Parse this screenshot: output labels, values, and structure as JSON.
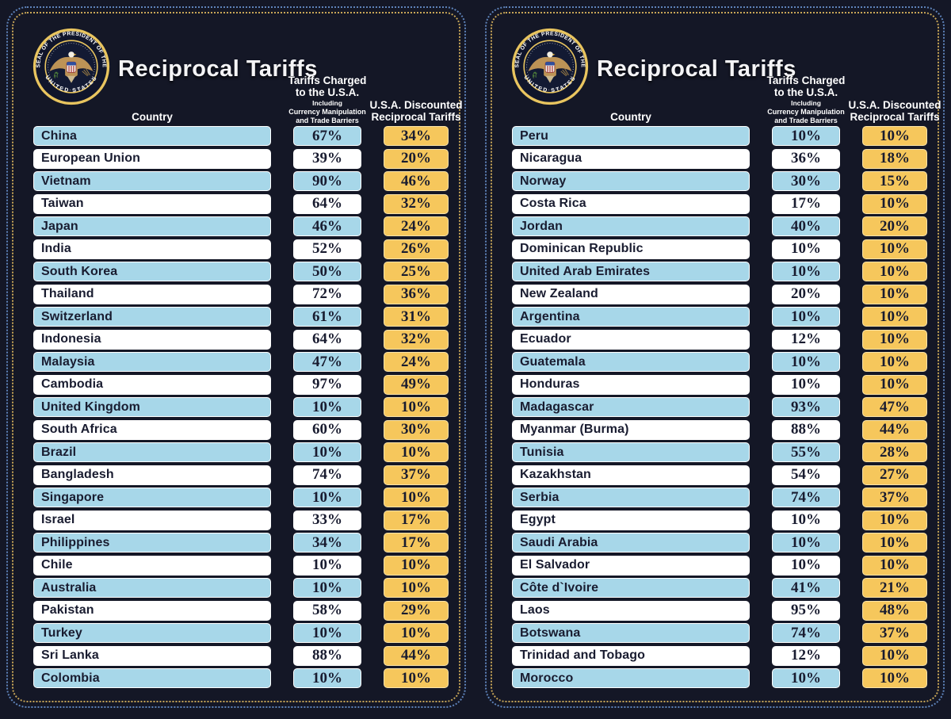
{
  "header": {
    "title": "Reciprocal Tariffs",
    "country_label": "Country",
    "charged_line1": "Tariffs Charged",
    "charged_line2": "to the U.S.A.",
    "charged_sub1": "Including",
    "charged_sub2": "Currency Manipulation",
    "charged_sub3": "and Trade Barriers",
    "discounted_line1": "U.S.A. Discounted",
    "discounted_line2": "Reciprocal Tariffs",
    "seal_text_top": "SEAL OF THE PRESIDENT OF THE",
    "seal_text_bottom": "UNITED STATES"
  },
  "colors": {
    "background": "#141726",
    "row_blue": "#a7d7e9",
    "row_white": "#ffffff",
    "discount_gold": "#f6c75c",
    "text_navy": "#191c30",
    "border_blue_dotted": "#5e83ba",
    "border_gold_dotted": "#c8a657",
    "seal_gold": "#e9c55f"
  },
  "panels": [
    {
      "side": "left",
      "rows": [
        {
          "country": "China",
          "charged": "67%",
          "discounted": "34%"
        },
        {
          "country": "European Union",
          "charged": "39%",
          "discounted": "20%"
        },
        {
          "country": "Vietnam",
          "charged": "90%",
          "discounted": "46%"
        },
        {
          "country": "Taiwan",
          "charged": "64%",
          "discounted": "32%"
        },
        {
          "country": "Japan",
          "charged": "46%",
          "discounted": "24%"
        },
        {
          "country": "India",
          "charged": "52%",
          "discounted": "26%"
        },
        {
          "country": "South Korea",
          "charged": "50%",
          "discounted": "25%"
        },
        {
          "country": "Thailand",
          "charged": "72%",
          "discounted": "36%"
        },
        {
          "country": "Switzerland",
          "charged": "61%",
          "discounted": "31%"
        },
        {
          "country": "Indonesia",
          "charged": "64%",
          "discounted": "32%"
        },
        {
          "country": "Malaysia",
          "charged": "47%",
          "discounted": "24%"
        },
        {
          "country": "Cambodia",
          "charged": "97%",
          "discounted": "49%"
        },
        {
          "country": "United Kingdom",
          "charged": "10%",
          "discounted": "10%"
        },
        {
          "country": "South Africa",
          "charged": "60%",
          "discounted": "30%"
        },
        {
          "country": "Brazil",
          "charged": "10%",
          "discounted": "10%"
        },
        {
          "country": "Bangladesh",
          "charged": "74%",
          "discounted": "37%"
        },
        {
          "country": "Singapore",
          "charged": "10%",
          "discounted": "10%"
        },
        {
          "country": "Israel",
          "charged": "33%",
          "discounted": "17%"
        },
        {
          "country": "Philippines",
          "charged": "34%",
          "discounted": "17%"
        },
        {
          "country": "Chile",
          "charged": "10%",
          "discounted": "10%"
        },
        {
          "country": "Australia",
          "charged": "10%",
          "discounted": "10%"
        },
        {
          "country": "Pakistan",
          "charged": "58%",
          "discounted": "29%"
        },
        {
          "country": "Turkey",
          "charged": "10%",
          "discounted": "10%"
        },
        {
          "country": "Sri Lanka",
          "charged": "88%",
          "discounted": "44%"
        },
        {
          "country": "Colombia",
          "charged": "10%",
          "discounted": "10%"
        }
      ]
    },
    {
      "side": "right",
      "rows": [
        {
          "country": "Peru",
          "charged": "10%",
          "discounted": "10%"
        },
        {
          "country": "Nicaragua",
          "charged": "36%",
          "discounted": "18%"
        },
        {
          "country": "Norway",
          "charged": "30%",
          "discounted": "15%"
        },
        {
          "country": "Costa Rica",
          "charged": "17%",
          "discounted": "10%"
        },
        {
          "country": "Jordan",
          "charged": "40%",
          "discounted": "20%"
        },
        {
          "country": "Dominican Republic",
          "charged": "10%",
          "discounted": "10%"
        },
        {
          "country": "United Arab Emirates",
          "charged": "10%",
          "discounted": "10%"
        },
        {
          "country": "New Zealand",
          "charged": "20%",
          "discounted": "10%"
        },
        {
          "country": "Argentina",
          "charged": "10%",
          "discounted": "10%"
        },
        {
          "country": "Ecuador",
          "charged": "12%",
          "discounted": "10%"
        },
        {
          "country": "Guatemala",
          "charged": "10%",
          "discounted": "10%"
        },
        {
          "country": "Honduras",
          "charged": "10%",
          "discounted": "10%"
        },
        {
          "country": "Madagascar",
          "charged": "93%",
          "discounted": "47%"
        },
        {
          "country": "Myanmar (Burma)",
          "charged": "88%",
          "discounted": "44%"
        },
        {
          "country": "Tunisia",
          "charged": "55%",
          "discounted": "28%"
        },
        {
          "country": "Kazakhstan",
          "charged": "54%",
          "discounted": "27%"
        },
        {
          "country": "Serbia",
          "charged": "74%",
          "discounted": "37%"
        },
        {
          "country": "Egypt",
          "charged": "10%",
          "discounted": "10%"
        },
        {
          "country": "Saudi Arabia",
          "charged": "10%",
          "discounted": "10%"
        },
        {
          "country": "El Salvador",
          "charged": "10%",
          "discounted": "10%"
        },
        {
          "country": "Côte d`Ivoire",
          "charged": "41%",
          "discounted": "21%"
        },
        {
          "country": "Laos",
          "charged": "95%",
          "discounted": "48%"
        },
        {
          "country": "Botswana",
          "charged": "74%",
          "discounted": "37%"
        },
        {
          "country": "Trinidad and Tobago",
          "charged": "12%",
          "discounted": "10%"
        },
        {
          "country": "Morocco",
          "charged": "10%",
          "discounted": "10%"
        }
      ]
    }
  ],
  "chart_data": {
    "type": "table",
    "title": "Reciprocal Tariffs",
    "units": "percent",
    "columns": [
      "Country",
      "Tariffs Charged to the U.S.A. (Including Currency Manipulation and Trade Barriers)",
      "U.S.A. Discounted Reciprocal Tariffs"
    ],
    "rows": [
      [
        "China",
        67,
        34
      ],
      [
        "European Union",
        39,
        20
      ],
      [
        "Vietnam",
        90,
        46
      ],
      [
        "Taiwan",
        64,
        32
      ],
      [
        "Japan",
        46,
        24
      ],
      [
        "India",
        52,
        26
      ],
      [
        "South Korea",
        50,
        25
      ],
      [
        "Thailand",
        72,
        36
      ],
      [
        "Switzerland",
        61,
        31
      ],
      [
        "Indonesia",
        64,
        32
      ],
      [
        "Malaysia",
        47,
        24
      ],
      [
        "Cambodia",
        97,
        49
      ],
      [
        "United Kingdom",
        10,
        10
      ],
      [
        "South Africa",
        60,
        30
      ],
      [
        "Brazil",
        10,
        10
      ],
      [
        "Bangladesh",
        74,
        37
      ],
      [
        "Singapore",
        10,
        10
      ],
      [
        "Israel",
        33,
        17
      ],
      [
        "Philippines",
        34,
        17
      ],
      [
        "Chile",
        10,
        10
      ],
      [
        "Australia",
        10,
        10
      ],
      [
        "Pakistan",
        58,
        29
      ],
      [
        "Turkey",
        10,
        10
      ],
      [
        "Sri Lanka",
        88,
        44
      ],
      [
        "Colombia",
        10,
        10
      ],
      [
        "Peru",
        10,
        10
      ],
      [
        "Nicaragua",
        36,
        18
      ],
      [
        "Norway",
        30,
        15
      ],
      [
        "Costa Rica",
        17,
        10
      ],
      [
        "Jordan",
        40,
        20
      ],
      [
        "Dominican Republic",
        10,
        10
      ],
      [
        "United Arab Emirates",
        10,
        10
      ],
      [
        "New Zealand",
        20,
        10
      ],
      [
        "Argentina",
        10,
        10
      ],
      [
        "Ecuador",
        12,
        10
      ],
      [
        "Guatemala",
        10,
        10
      ],
      [
        "Honduras",
        10,
        10
      ],
      [
        "Madagascar",
        93,
        47
      ],
      [
        "Myanmar (Burma)",
        88,
        44
      ],
      [
        "Tunisia",
        55,
        28
      ],
      [
        "Kazakhstan",
        54,
        27
      ],
      [
        "Serbia",
        74,
        37
      ],
      [
        "Egypt",
        10,
        10
      ],
      [
        "Saudi Arabia",
        10,
        10
      ],
      [
        "El Salvador",
        10,
        10
      ],
      [
        "Côte d`Ivoire",
        41,
        21
      ],
      [
        "Laos",
        95,
        48
      ],
      [
        "Botswana",
        74,
        37
      ],
      [
        "Trinidad and Tobago",
        12,
        10
      ],
      [
        "Morocco",
        10,
        10
      ]
    ]
  }
}
